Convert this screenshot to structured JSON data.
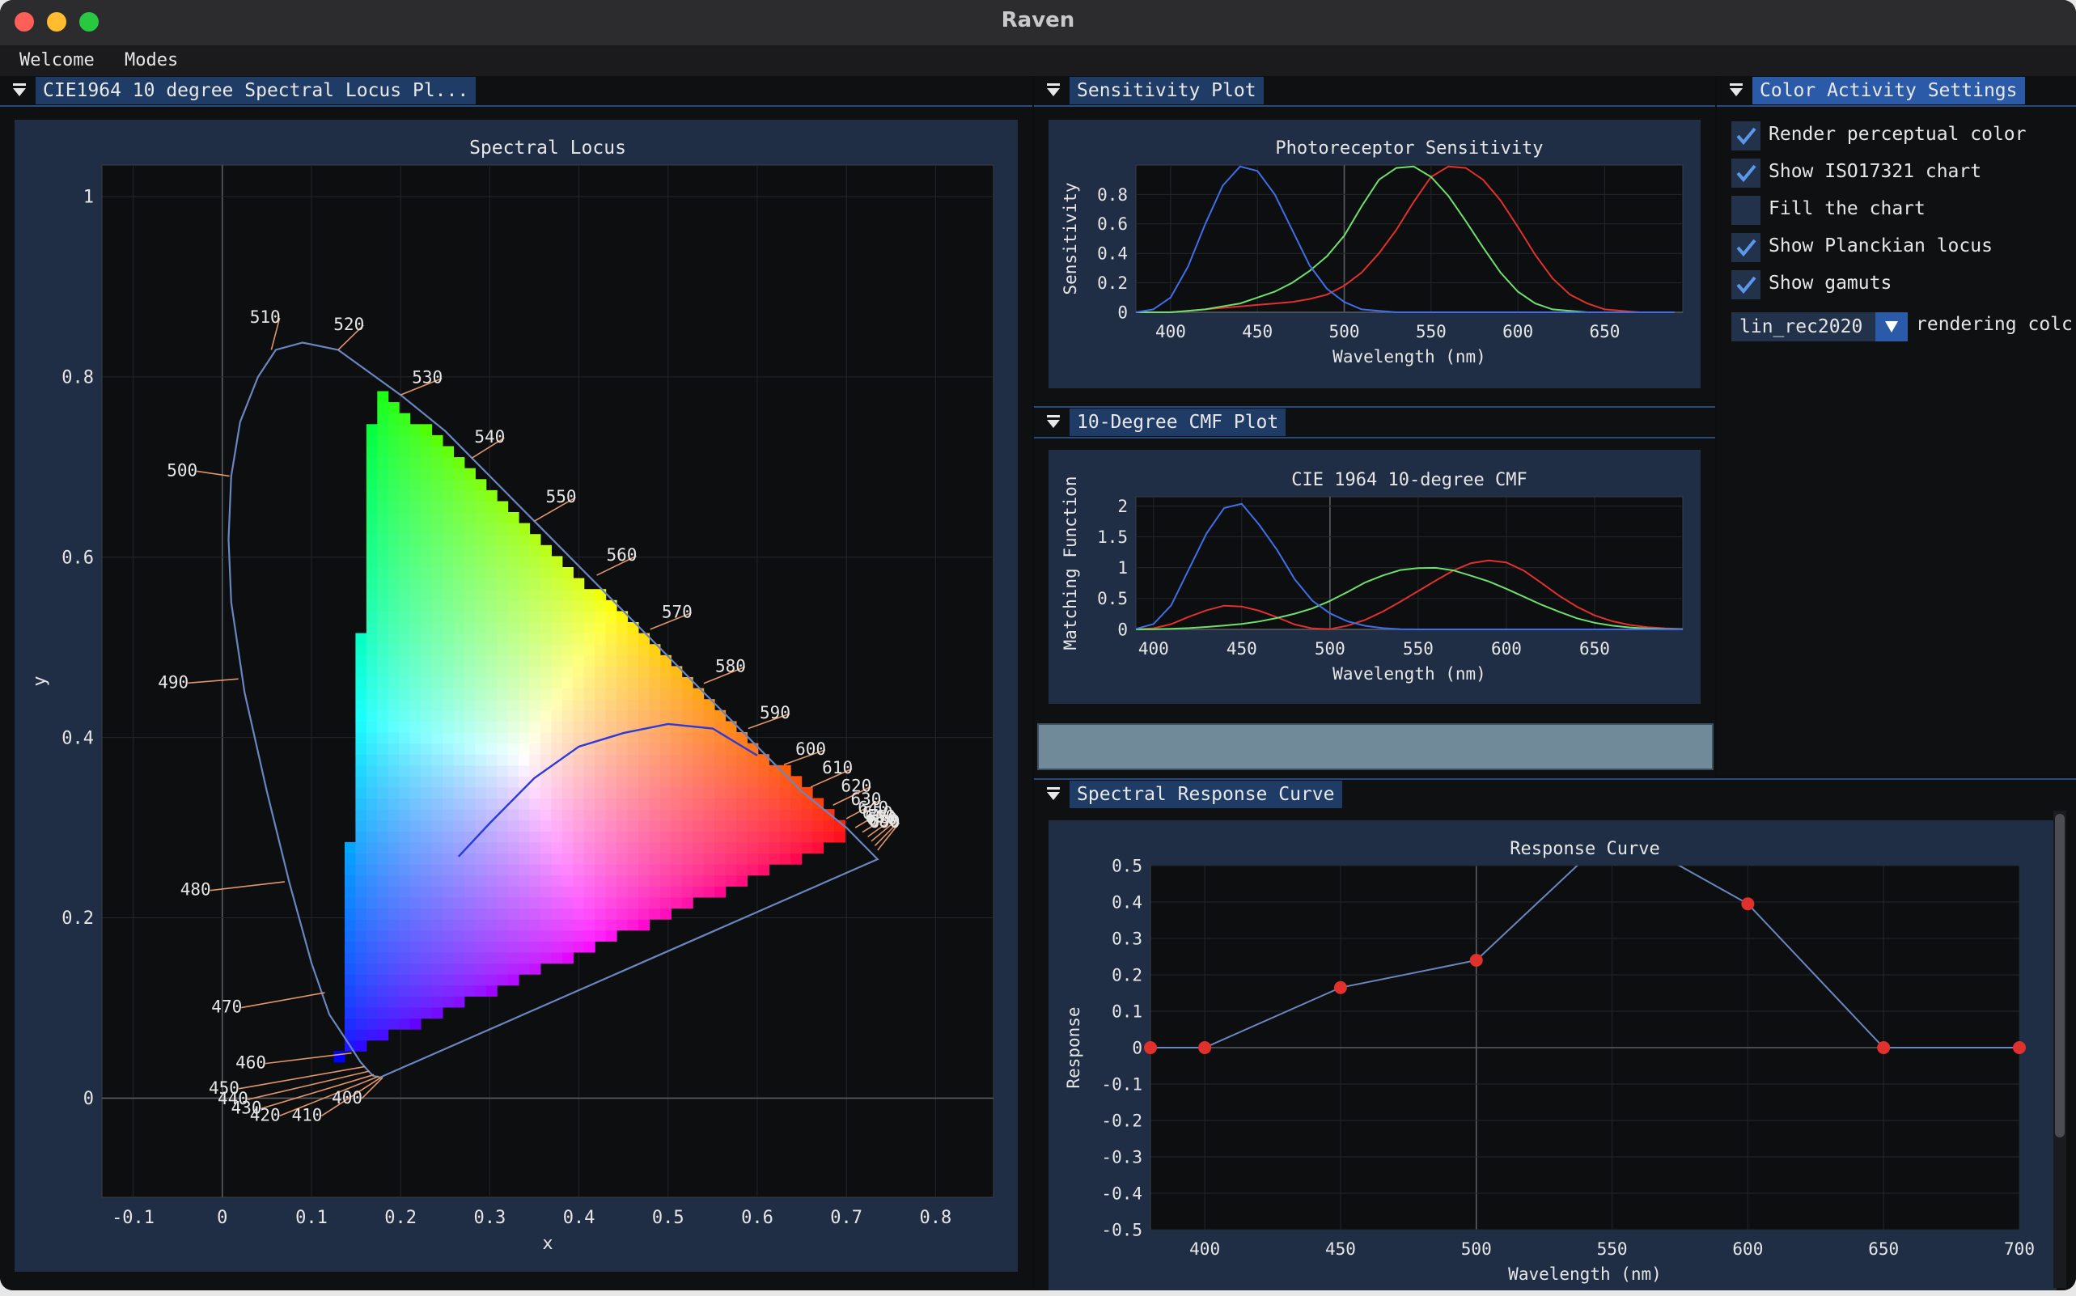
{
  "window": {
    "title": "Raven"
  },
  "menu": {
    "items": [
      "Welcome",
      "Modes"
    ]
  },
  "panels": {
    "locus": {
      "title": "CIE1964 10 degree Spectral Locus Pl..."
    },
    "sensitivity": {
      "title": "Sensitivity Plot"
    },
    "cmf": {
      "title": "10-Degree CMF Plot"
    },
    "response": {
      "title": "Spectral Response Curve"
    },
    "settings": {
      "title": "Color Activity Settings"
    }
  },
  "settings": {
    "checkboxes": [
      {
        "label": "Render perceptual color",
        "checked": true
      },
      {
        "label": "Show ISO17321 chart",
        "checked": true
      },
      {
        "label": "Fill the chart",
        "checked": false
      },
      {
        "label": "Show Planckian locus",
        "checked": true
      },
      {
        "label": "Show gamuts",
        "checked": true
      }
    ],
    "rendering_select": {
      "value": "lin_rec2020",
      "label": "rendering colc"
    }
  },
  "colors": {
    "accent": "#4f86d6",
    "red": "#e0312c",
    "green": "#6de06d",
    "blue": "#3f6ee8",
    "locus_line": "#6a86c0",
    "orange": "#e0956a",
    "swatch": "#718a99"
  },
  "chart_data": [
    {
      "type": "line",
      "title": "Spectral Locus",
      "xlabel": "x",
      "ylabel": "y",
      "xlim": [
        -0.135,
        0.865
      ],
      "ylim": [
        -0.11,
        1.035
      ],
      "xticks": [
        "-0.1",
        "0",
        "0.1",
        "0.2",
        "0.3",
        "0.4",
        "0.5",
        "0.6",
        "0.7",
        "0.8"
      ],
      "yticks": [
        "0",
        "0.2",
        "0.4",
        "0.6",
        "0.8",
        "1"
      ],
      "locus": [
        [
          0.177,
          0.023
        ],
        [
          0.174,
          0.024
        ],
        [
          0.172,
          0.024
        ],
        [
          0.169,
          0.025
        ],
        [
          0.164,
          0.03
        ],
        [
          0.155,
          0.04
        ],
        [
          0.142,
          0.06
        ],
        [
          0.12,
          0.093
        ],
        [
          0.1,
          0.15
        ],
        [
          0.075,
          0.24
        ],
        [
          0.05,
          0.34
        ],
        [
          0.025,
          0.45
        ],
        [
          0.01,
          0.55
        ],
        [
          0.007,
          0.62
        ],
        [
          0.01,
          0.69
        ],
        [
          0.02,
          0.75
        ],
        [
          0.04,
          0.8
        ],
        [
          0.06,
          0.83
        ],
        [
          0.09,
          0.838
        ],
        [
          0.13,
          0.83
        ],
        [
          0.2,
          0.78
        ],
        [
          0.25,
          0.74
        ],
        [
          0.3,
          0.69
        ],
        [
          0.35,
          0.64
        ],
        [
          0.4,
          0.59
        ],
        [
          0.45,
          0.54
        ],
        [
          0.5,
          0.49
        ],
        [
          0.55,
          0.44
        ],
        [
          0.6,
          0.39
        ],
        [
          0.65,
          0.34
        ],
        [
          0.7,
          0.3
        ],
        [
          0.735,
          0.265
        ]
      ],
      "wavelength_labels": [
        {
          "text": "510",
          "x": 0.048,
          "y": 0.86
        },
        {
          "text": "520",
          "x": 0.142,
          "y": 0.852
        },
        {
          "text": "530",
          "x": 0.23,
          "y": 0.793
        },
        {
          "text": "540",
          "x": 0.3,
          "y": 0.727
        },
        {
          "text": "550",
          "x": 0.38,
          "y": 0.661
        },
        {
          "text": "560",
          "x": 0.448,
          "y": 0.596
        },
        {
          "text": "570",
          "x": 0.51,
          "y": 0.533
        },
        {
          "text": "580",
          "x": 0.57,
          "y": 0.473
        },
        {
          "text": "590",
          "x": 0.62,
          "y": 0.421
        },
        {
          "text": "600",
          "x": 0.66,
          "y": 0.381
        },
        {
          "text": "610",
          "x": 0.69,
          "y": 0.36
        },
        {
          "text": "620",
          "x": 0.711,
          "y": 0.34
        },
        {
          "text": "630",
          "x": 0.722,
          "y": 0.325
        },
        {
          "text": "640",
          "x": 0.73,
          "y": 0.316
        },
        {
          "text": "650",
          "x": 0.735,
          "y": 0.31
        },
        {
          "text": "660",
          "x": 0.738,
          "y": 0.306
        },
        {
          "text": "670",
          "x": 0.74,
          "y": 0.303
        },
        {
          "text": "680",
          "x": 0.742,
          "y": 0.301
        },
        {
          "text": "690",
          "x": 0.743,
          "y": 0.3
        },
        {
          "text": "500",
          "x": -0.045,
          "y": 0.69
        },
        {
          "text": "490",
          "x": -0.055,
          "y": 0.455
        },
        {
          "text": "480",
          "x": -0.03,
          "y": 0.225
        },
        {
          "text": "470",
          "x": 0.005,
          "y": 0.095
        },
        {
          "text": "460",
          "x": 0.032,
          "y": 0.033
        },
        {
          "text": "450",
          "x": 0.002,
          "y": 0.005
        },
        {
          "text": "440",
          "x": 0.012,
          "y": -0.007
        },
        {
          "text": "430",
          "x": 0.027,
          "y": -0.017
        },
        {
          "text": "420",
          "x": 0.048,
          "y": -0.025
        },
        {
          "text": "410",
          "x": 0.095,
          "y": -0.025
        },
        {
          "text": "400",
          "x": 0.14,
          "y": -0.006
        }
      ],
      "planckian_locus": [
        [
          0.265,
          0.268
        ],
        [
          0.3,
          0.305
        ],
        [
          0.35,
          0.355
        ],
        [
          0.4,
          0.39
        ],
        [
          0.45,
          0.405
        ],
        [
          0.5,
          0.415
        ],
        [
          0.55,
          0.41
        ],
        [
          0.6,
          0.38
        ]
      ],
      "gamut_triangle": [
        [
          0.708,
          0.292
        ],
        [
          0.17,
          0.797
        ],
        [
          0.131,
          0.046
        ]
      ]
    },
    {
      "type": "line",
      "title": "Photoreceptor Sensitivity",
      "xlabel": "Wavelength (nm)",
      "ylabel": "Sensitivity",
      "xlim": [
        380,
        695
      ],
      "ylim": [
        0,
        1.0
      ],
      "xticks": [
        "400",
        "450",
        "500",
        "550",
        "600",
        "650"
      ],
      "yticks": [
        "0",
        "0.2",
        "0.4",
        "0.6",
        "0.8"
      ],
      "x": [
        380,
        390,
        400,
        410,
        420,
        430,
        440,
        450,
        460,
        470,
        480,
        490,
        500,
        510,
        520,
        530,
        540,
        550,
        560,
        570,
        580,
        590,
        600,
        610,
        620,
        630,
        640,
        650,
        660,
        670,
        680,
        690
      ],
      "series": [
        {
          "color": "#e0312c",
          "values": [
            0,
            0,
            0,
            0.01,
            0.02,
            0.03,
            0.04,
            0.05,
            0.06,
            0.07,
            0.09,
            0.12,
            0.18,
            0.27,
            0.4,
            0.56,
            0.75,
            0.92,
            0.99,
            0.98,
            0.9,
            0.76,
            0.58,
            0.39,
            0.23,
            0.12,
            0.06,
            0.02,
            0.01,
            0,
            0,
            0
          ]
        },
        {
          "color": "#6de06d",
          "values": [
            0,
            0,
            0,
            0.01,
            0.02,
            0.04,
            0.06,
            0.1,
            0.14,
            0.2,
            0.28,
            0.38,
            0.52,
            0.72,
            0.9,
            0.98,
            0.99,
            0.92,
            0.79,
            0.62,
            0.44,
            0.27,
            0.14,
            0.06,
            0.02,
            0.01,
            0,
            0,
            0,
            0,
            0,
            0
          ]
        },
        {
          "color": "#3f6ee8",
          "values": [
            0,
            0.02,
            0.1,
            0.31,
            0.6,
            0.86,
            0.99,
            0.96,
            0.8,
            0.56,
            0.32,
            0.16,
            0.07,
            0.02,
            0.01,
            0,
            0,
            0,
            0,
            0,
            0,
            0,
            0,
            0,
            0,
            0,
            0,
            0,
            0,
            0,
            0,
            0
          ]
        }
      ]
    },
    {
      "type": "line",
      "title": "CIE 1964 10-degree CMF",
      "xlabel": "Wavelength (nm)",
      "ylabel": "Matching Function",
      "xlim": [
        390,
        700
      ],
      "ylim": [
        0,
        2.15
      ],
      "xticks": [
        "400",
        "450",
        "500",
        "550",
        "600",
        "650"
      ],
      "yticks": [
        "0",
        "0.5",
        "1",
        "1.5",
        "2"
      ],
      "x": [
        390,
        400,
        410,
        420,
        430,
        440,
        450,
        460,
        470,
        480,
        490,
        500,
        510,
        520,
        530,
        540,
        550,
        560,
        570,
        580,
        590,
        600,
        610,
        620,
        630,
        640,
        650,
        660,
        670,
        680,
        690,
        700
      ],
      "series": [
        {
          "color": "#e0312c",
          "values": [
            0.002,
            0.019,
            0.085,
            0.205,
            0.31,
            0.384,
            0.371,
            0.302,
            0.196,
            0.08,
            0.016,
            0.004,
            0.062,
            0.155,
            0.29,
            0.451,
            0.621,
            0.792,
            0.954,
            1.074,
            1.118,
            1.086,
            0.951,
            0.751,
            0.543,
            0.367,
            0.227,
            0.132,
            0.072,
            0.035,
            0.016,
            0.007
          ]
        },
        {
          "color": "#6de06d",
          "values": [
            0,
            0.002,
            0.009,
            0.021,
            0.039,
            0.062,
            0.089,
            0.128,
            0.185,
            0.254,
            0.339,
            0.461,
            0.607,
            0.762,
            0.875,
            0.962,
            0.992,
            0.997,
            0.956,
            0.869,
            0.777,
            0.658,
            0.528,
            0.398,
            0.284,
            0.18,
            0.108,
            0.06,
            0.032,
            0.015,
            0.007,
            0.003
          ]
        },
        {
          "color": "#3f6ee8",
          "values": [
            0.009,
            0.087,
            0.389,
            0.973,
            1.554,
            1.967,
            2.036,
            1.692,
            1.288,
            0.813,
            0.465,
            0.26,
            0.13,
            0.058,
            0.021,
            0.004,
            0,
            0,
            0,
            0,
            0,
            0,
            0,
            0,
            0,
            0,
            0,
            0,
            0,
            0,
            0,
            0
          ]
        }
      ]
    },
    {
      "type": "line",
      "title": "Response Curve",
      "xlabel": "Wavelength (nm)",
      "ylabel": "Response",
      "xlim": [
        380,
        700
      ],
      "ylim": [
        -0.5,
        0.5
      ],
      "xticks": [
        "400",
        "450",
        "500",
        "550",
        "600",
        "650",
        "700"
      ],
      "yticks": [
        "0.5",
        "0.4",
        "0.3",
        "0.2",
        "0.1",
        "0",
        "-0.1",
        "-0.2",
        "-0.3",
        "-0.4",
        "-0.5"
      ],
      "x": [
        380,
        400,
        450,
        500,
        540,
        570,
        600,
        650,
        700
      ],
      "values": [
        0,
        0,
        0.165,
        0.24,
        0.52,
        0.52,
        0.395,
        0,
        0
      ],
      "control_points": [
        [
          380,
          0
        ],
        [
          400,
          0
        ],
        [
          450,
          0.165
        ],
        [
          500,
          0.24
        ],
        [
          600,
          0.395
        ],
        [
          650,
          0
        ],
        [
          700,
          0
        ]
      ]
    }
  ]
}
